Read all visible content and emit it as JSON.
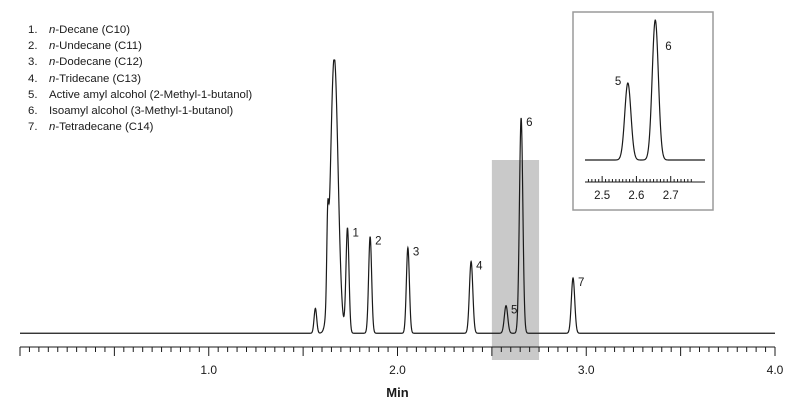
{
  "chart_data": {
    "type": "line",
    "title": "",
    "xlabel": "Min",
    "ylabel": "",
    "xlim": [
      0.0,
      4.0
    ],
    "ylim": [
      0,
      100
    ],
    "xticks": [
      1.0,
      2.0,
      3.0,
      4.0
    ],
    "xtick_labels": [
      "1.0",
      "2.0",
      "3.0",
      "4.0"
    ],
    "grid": false,
    "legend": [
      {
        "num": "1.",
        "italic": "n",
        "rest": "-Decane (C10)"
      },
      {
        "num": "2.",
        "italic": "n",
        "rest": "-Undecane (C11)"
      },
      {
        "num": "3.",
        "italic": "n",
        "rest": "-Dodecane (C12)"
      },
      {
        "num": "4.",
        "italic": "n",
        "rest": "-Tridecane (C13)"
      },
      {
        "num": "5.",
        "italic": "",
        "rest": "Active amyl alcohol (2-Methyl-1-butanol)"
      },
      {
        "num": "6.",
        "italic": "",
        "rest": "Isoamyl alcohol (3-Methyl-1-butanol)"
      },
      {
        "num": "7.",
        "italic": "n",
        "rest": "-Tetradecane (C14)"
      }
    ],
    "legend_placement": "top-left",
    "baseline": 1.0,
    "peaks": [
      {
        "label": "",
        "rt": 1.565,
        "height": 9,
        "width": 0.007
      },
      {
        "label": "",
        "rt": 1.63,
        "height": 25,
        "width": 0.005
      },
      {
        "label": "",
        "rt": 1.665,
        "height": 100,
        "width": 0.02,
        "offscale": true
      },
      {
        "label": "1",
        "rt": 1.735,
        "height": 38,
        "width": 0.008
      },
      {
        "label": "2",
        "rt": 1.855,
        "height": 35,
        "width": 0.008
      },
      {
        "label": "3",
        "rt": 2.055,
        "height": 31,
        "width": 0.008
      },
      {
        "label": "4",
        "rt": 2.39,
        "height": 26,
        "width": 0.009
      },
      {
        "label": "5",
        "rt": 2.575,
        "height": 10,
        "width": 0.009
      },
      {
        "label": "6",
        "rt": 2.655,
        "height": 78,
        "width": 0.009
      },
      {
        "label": "7",
        "rt": 2.93,
        "height": 20,
        "width": 0.009
      }
    ],
    "highlight_region": [
      2.5,
      2.75
    ],
    "inset": {
      "xlim": [
        2.45,
        2.8
      ],
      "xticks": [
        2.5,
        2.6,
        2.7
      ],
      "xtick_labels": [
        "2.5",
        "2.6",
        "2.7"
      ],
      "peaks": [
        {
          "label": "5",
          "rt": 2.575,
          "height": 55,
          "width": 0.009
        },
        {
          "label": "6",
          "rt": 2.655,
          "height": 100,
          "width": 0.009,
          "offscale": true
        }
      ]
    }
  }
}
